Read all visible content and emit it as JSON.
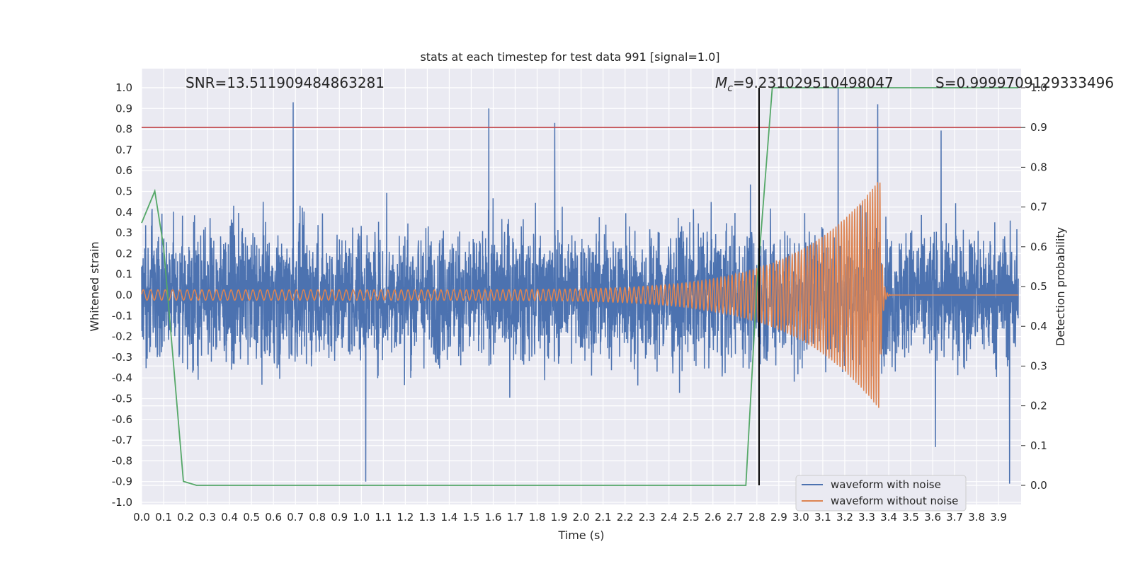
{
  "chart_data": {
    "type": "line",
    "title": "stats at each timestep for test data 991 [signal=1.0]",
    "xlabel": "Time (s)",
    "ylabel": "Whitened strain",
    "y2label": "Detection probability",
    "xlim": [
      0.0,
      3.99
    ],
    "ylim": [
      -1.0,
      1.1
    ],
    "y2lim": [
      -0.05,
      1.0
    ],
    "x_ticks": [
      "0.0",
      "0.1",
      "0.2",
      "0.3",
      "0.4",
      "0.5",
      "0.6",
      "0.7",
      "0.8",
      "0.9",
      "1.0",
      "1.1",
      "1.2",
      "1.3",
      "1.4",
      "1.5",
      "1.6",
      "1.7",
      "1.8",
      "1.9",
      "2.0",
      "2.1",
      "2.2",
      "2.3",
      "2.4",
      "2.5",
      "2.6",
      "2.7",
      "2.8",
      "2.9",
      "3.0",
      "3.1",
      "3.2",
      "3.3",
      "3.4",
      "3.5",
      "3.6",
      "3.7",
      "3.8",
      "3.9"
    ],
    "y_ticks": [
      "-1.0",
      "-0.9",
      "-0.8",
      "-0.7",
      "-0.6",
      "-0.5",
      "-0.4",
      "-0.3",
      "-0.2",
      "-0.1",
      "0.0",
      "0.1",
      "0.2",
      "0.3",
      "0.4",
      "0.5",
      "0.6",
      "0.7",
      "0.8",
      "0.9",
      "1.0"
    ],
    "y2_ticks": [
      "0.0",
      "0.1",
      "0.2",
      "0.3",
      "0.4",
      "0.5",
      "0.6",
      "0.7",
      "0.8",
      "0.9",
      "1.0"
    ],
    "grid": true,
    "legend_position": "bottom-right",
    "annotations": {
      "snr": "SNR=13.511909484863281",
      "mc_symbol": "M",
      "mc_sub": "c",
      "mc_value": "=9.231029510498047",
      "s": "S=0.9999709129333496"
    },
    "threshold_line": {
      "y2": 0.9,
      "color": "#c44e52"
    },
    "merger_line": {
      "x": 2.81,
      "color": "#000000"
    },
    "series": [
      {
        "name": "waveform with noise",
        "color": "#4c72b0",
        "description_values": {
          "typical_amplitude": 0.3,
          "peaks": [
            [
              0.69,
              0.93
            ],
            [
              1.58,
              0.9
            ],
            [
              1.88,
              0.83
            ],
            [
              3.17,
              1.0
            ],
            [
              3.35,
              0.92
            ],
            [
              3.95,
              -0.91
            ],
            [
              1.02,
              -0.9
            ]
          ]
        }
      },
      {
        "name": "waveform without noise",
        "color": "#dd8452",
        "chirp": {
          "amplitude_start": 0.025,
          "amplitude_peak": 0.56,
          "peak_time": 3.36,
          "freq_start_hz": 30,
          "freq_peak_hz": 90
        }
      },
      {
        "name": "detection probability",
        "color": "#55a868",
        "axis": "right",
        "x": [
          0.0,
          0.06,
          0.1,
          0.14,
          0.19,
          0.25,
          2.0,
          2.75,
          2.8,
          2.87,
          3.99
        ],
        "values": [
          0.66,
          0.74,
          0.6,
          0.34,
          0.01,
          0.0,
          0.0,
          0.0,
          0.5,
          1.0,
          1.0
        ]
      }
    ]
  }
}
